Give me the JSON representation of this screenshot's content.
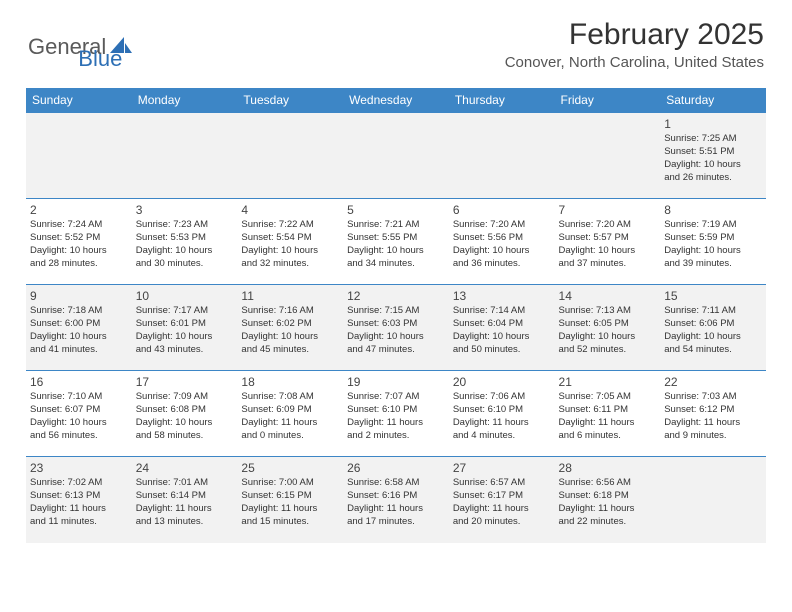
{
  "logo": {
    "part1": "General",
    "part2": "Blue"
  },
  "title": "February 2025",
  "location": "Conover, North Carolina, United States",
  "colors": {
    "header_bg": "#3d86c6",
    "header_text": "#ffffff",
    "alt_row_bg": "#f2f2f2",
    "row_bg": "#ffffff",
    "border": "#3d86c6",
    "title_color": "#333333",
    "logo_gray": "#5a5a5a",
    "logo_blue": "#2d6fb5"
  },
  "day_headers": [
    "Sunday",
    "Monday",
    "Tuesday",
    "Wednesday",
    "Thursday",
    "Friday",
    "Saturday"
  ],
  "weeks": [
    {
      "alt": true,
      "days": [
        null,
        null,
        null,
        null,
        null,
        null,
        {
          "n": "1",
          "sunrise": "Sunrise: 7:25 AM",
          "sunset": "Sunset: 5:51 PM",
          "d1": "Daylight: 10 hours",
          "d2": "and 26 minutes."
        }
      ]
    },
    {
      "alt": false,
      "days": [
        {
          "n": "2",
          "sunrise": "Sunrise: 7:24 AM",
          "sunset": "Sunset: 5:52 PM",
          "d1": "Daylight: 10 hours",
          "d2": "and 28 minutes."
        },
        {
          "n": "3",
          "sunrise": "Sunrise: 7:23 AM",
          "sunset": "Sunset: 5:53 PM",
          "d1": "Daylight: 10 hours",
          "d2": "and 30 minutes."
        },
        {
          "n": "4",
          "sunrise": "Sunrise: 7:22 AM",
          "sunset": "Sunset: 5:54 PM",
          "d1": "Daylight: 10 hours",
          "d2": "and 32 minutes."
        },
        {
          "n": "5",
          "sunrise": "Sunrise: 7:21 AM",
          "sunset": "Sunset: 5:55 PM",
          "d1": "Daylight: 10 hours",
          "d2": "and 34 minutes."
        },
        {
          "n": "6",
          "sunrise": "Sunrise: 7:20 AM",
          "sunset": "Sunset: 5:56 PM",
          "d1": "Daylight: 10 hours",
          "d2": "and 36 minutes."
        },
        {
          "n": "7",
          "sunrise": "Sunrise: 7:20 AM",
          "sunset": "Sunset: 5:57 PM",
          "d1": "Daylight: 10 hours",
          "d2": "and 37 minutes."
        },
        {
          "n": "8",
          "sunrise": "Sunrise: 7:19 AM",
          "sunset": "Sunset: 5:59 PM",
          "d1": "Daylight: 10 hours",
          "d2": "and 39 minutes."
        }
      ]
    },
    {
      "alt": true,
      "days": [
        {
          "n": "9",
          "sunrise": "Sunrise: 7:18 AM",
          "sunset": "Sunset: 6:00 PM",
          "d1": "Daylight: 10 hours",
          "d2": "and 41 minutes."
        },
        {
          "n": "10",
          "sunrise": "Sunrise: 7:17 AM",
          "sunset": "Sunset: 6:01 PM",
          "d1": "Daylight: 10 hours",
          "d2": "and 43 minutes."
        },
        {
          "n": "11",
          "sunrise": "Sunrise: 7:16 AM",
          "sunset": "Sunset: 6:02 PM",
          "d1": "Daylight: 10 hours",
          "d2": "and 45 minutes."
        },
        {
          "n": "12",
          "sunrise": "Sunrise: 7:15 AM",
          "sunset": "Sunset: 6:03 PM",
          "d1": "Daylight: 10 hours",
          "d2": "and 47 minutes."
        },
        {
          "n": "13",
          "sunrise": "Sunrise: 7:14 AM",
          "sunset": "Sunset: 6:04 PM",
          "d1": "Daylight: 10 hours",
          "d2": "and 50 minutes."
        },
        {
          "n": "14",
          "sunrise": "Sunrise: 7:13 AM",
          "sunset": "Sunset: 6:05 PM",
          "d1": "Daylight: 10 hours",
          "d2": "and 52 minutes."
        },
        {
          "n": "15",
          "sunrise": "Sunrise: 7:11 AM",
          "sunset": "Sunset: 6:06 PM",
          "d1": "Daylight: 10 hours",
          "d2": "and 54 minutes."
        }
      ]
    },
    {
      "alt": false,
      "days": [
        {
          "n": "16",
          "sunrise": "Sunrise: 7:10 AM",
          "sunset": "Sunset: 6:07 PM",
          "d1": "Daylight: 10 hours",
          "d2": "and 56 minutes."
        },
        {
          "n": "17",
          "sunrise": "Sunrise: 7:09 AM",
          "sunset": "Sunset: 6:08 PM",
          "d1": "Daylight: 10 hours",
          "d2": "and 58 minutes."
        },
        {
          "n": "18",
          "sunrise": "Sunrise: 7:08 AM",
          "sunset": "Sunset: 6:09 PM",
          "d1": "Daylight: 11 hours",
          "d2": "and 0 minutes."
        },
        {
          "n": "19",
          "sunrise": "Sunrise: 7:07 AM",
          "sunset": "Sunset: 6:10 PM",
          "d1": "Daylight: 11 hours",
          "d2": "and 2 minutes."
        },
        {
          "n": "20",
          "sunrise": "Sunrise: 7:06 AM",
          "sunset": "Sunset: 6:10 PM",
          "d1": "Daylight: 11 hours",
          "d2": "and 4 minutes."
        },
        {
          "n": "21",
          "sunrise": "Sunrise: 7:05 AM",
          "sunset": "Sunset: 6:11 PM",
          "d1": "Daylight: 11 hours",
          "d2": "and 6 minutes."
        },
        {
          "n": "22",
          "sunrise": "Sunrise: 7:03 AM",
          "sunset": "Sunset: 6:12 PM",
          "d1": "Daylight: 11 hours",
          "d2": "and 9 minutes."
        }
      ]
    },
    {
      "alt": true,
      "days": [
        {
          "n": "23",
          "sunrise": "Sunrise: 7:02 AM",
          "sunset": "Sunset: 6:13 PM",
          "d1": "Daylight: 11 hours",
          "d2": "and 11 minutes."
        },
        {
          "n": "24",
          "sunrise": "Sunrise: 7:01 AM",
          "sunset": "Sunset: 6:14 PM",
          "d1": "Daylight: 11 hours",
          "d2": "and 13 minutes."
        },
        {
          "n": "25",
          "sunrise": "Sunrise: 7:00 AM",
          "sunset": "Sunset: 6:15 PM",
          "d1": "Daylight: 11 hours",
          "d2": "and 15 minutes."
        },
        {
          "n": "26",
          "sunrise": "Sunrise: 6:58 AM",
          "sunset": "Sunset: 6:16 PM",
          "d1": "Daylight: 11 hours",
          "d2": "and 17 minutes."
        },
        {
          "n": "27",
          "sunrise": "Sunrise: 6:57 AM",
          "sunset": "Sunset: 6:17 PM",
          "d1": "Daylight: 11 hours",
          "d2": "and 20 minutes."
        },
        {
          "n": "28",
          "sunrise": "Sunrise: 6:56 AM",
          "sunset": "Sunset: 6:18 PM",
          "d1": "Daylight: 11 hours",
          "d2": "and 22 minutes."
        },
        null
      ]
    }
  ]
}
